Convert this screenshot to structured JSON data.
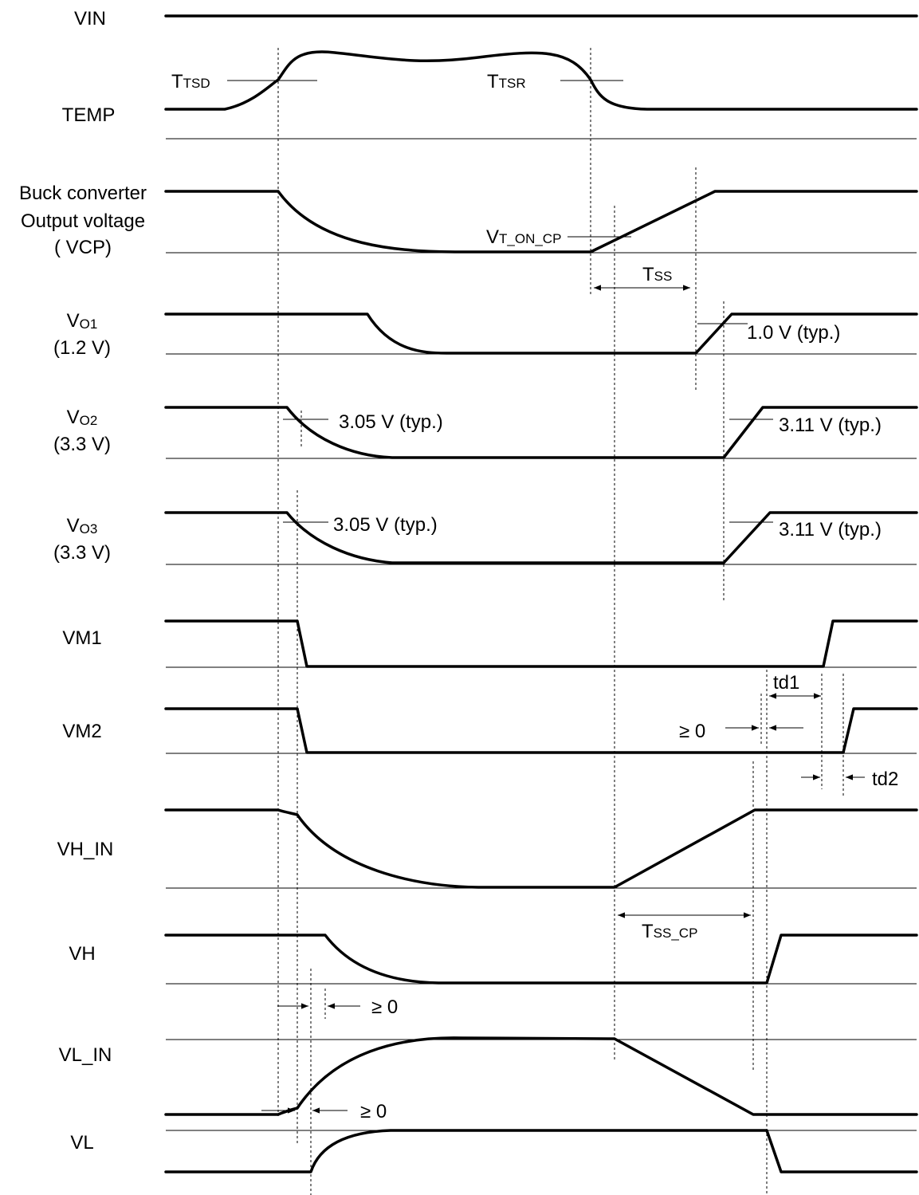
{
  "signals": [
    {
      "id": "vin",
      "lines": [
        "VIN"
      ]
    },
    {
      "id": "temp",
      "lines": [
        "TEMP"
      ]
    },
    {
      "id": "vcp",
      "lines": [
        "Buck converter",
        "Output voltage",
        "( VCP)"
      ]
    },
    {
      "id": "vo1",
      "main": "V",
      "sub": "O1",
      "line2": "(1.2 V)"
    },
    {
      "id": "vo2",
      "main": "V",
      "sub": "O2",
      "line2": "(3.3 V)"
    },
    {
      "id": "vo3",
      "main": "V",
      "sub": "O3",
      "line2": "(3.3 V)"
    },
    {
      "id": "vm1",
      "lines": [
        "VM1"
      ]
    },
    {
      "id": "vm2",
      "lines": [
        "VM2"
      ]
    },
    {
      "id": "vh_in",
      "lines": [
        "VH_IN"
      ]
    },
    {
      "id": "vh",
      "lines": [
        "VH"
      ]
    },
    {
      "id": "vl_in",
      "lines": [
        "VL_IN"
      ]
    },
    {
      "id": "vl",
      "lines": [
        "VL"
      ]
    }
  ],
  "annotations": {
    "ttsd": {
      "main": "T",
      "sub": "TSD"
    },
    "ttsr": {
      "main": "T",
      "sub": "TSR"
    },
    "vt_on_cp": {
      "main": "V",
      "sub": "T_ON_CP"
    },
    "tss": {
      "main": "T",
      "sub": "SS"
    },
    "tss_cp": {
      "main": "T",
      "sub": "SS_CP"
    },
    "vo1_threshold": "1.0 V (typ.)",
    "vo2_fall": "3.05 V (typ.)",
    "vo2_rise": "3.11 V (typ.)",
    "vo3_fall": "3.05 V (typ.)",
    "vo3_rise": "3.11 V (typ.)",
    "td1": "td1",
    "td2": "td2",
    "ge0_vm": "≥ 0",
    "ge0_vh": "≥ 0",
    "ge0_vl": "≥ 0"
  }
}
